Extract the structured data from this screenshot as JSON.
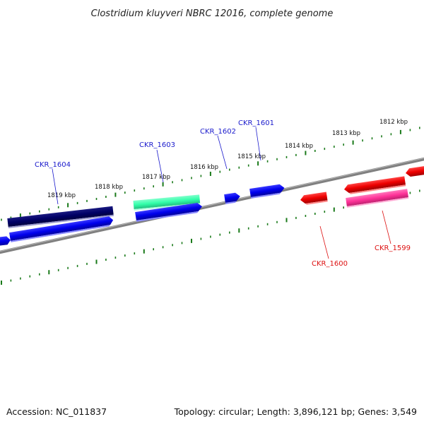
{
  "title": "Clostridium kluyveri NBRC 12016, complete genome",
  "footer": {
    "accession": "Accession: NC_011837",
    "summary": "Topology: circular; Length: 3,896,121 bp; Genes: 3,549"
  },
  "kbp_labels": [
    "1812 kbp",
    "1813 kbp",
    "1814 kbp",
    "1815 kbp",
    "1816 kbp",
    "1817 kbp",
    "1818 kbp",
    "1819 kbp"
  ],
  "gene_labels": [
    {
      "text": "CKR_1604",
      "color": "#1a1acc"
    },
    {
      "text": "CKR_1603",
      "color": "#1a1acc"
    },
    {
      "text": "CKR_1602",
      "color": "#1a1acc"
    },
    {
      "text": "CKR_1601",
      "color": "#1a1acc"
    },
    {
      "text": "CKR_1600",
      "color": "#dd1111"
    },
    {
      "text": "CKR_1599",
      "color": "#dd1111"
    }
  ],
  "colors": {
    "backbone": "#808080",
    "tick": "#1a7a1a",
    "forward_gene": "#0000ee",
    "reverse_gene": "#ee0000",
    "dark_gene": "#000066",
    "green_gene": "#33ffaa",
    "pink_gene": "#ff3399"
  }
}
